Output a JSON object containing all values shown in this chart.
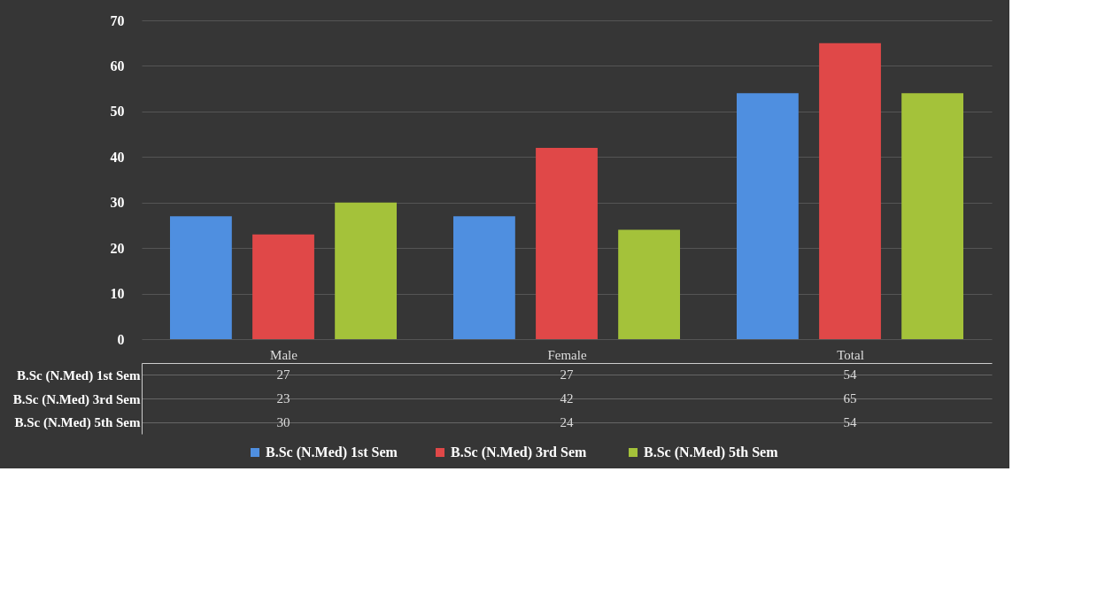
{
  "chart_data": {
    "type": "bar",
    "categories": [
      "Male",
      "Female",
      "Total"
    ],
    "series": [
      {
        "name": "B.Sc (N.Med) 1st Sem",
        "color": "#4f8fe0",
        "values": [
          27,
          27,
          54
        ]
      },
      {
        "name": "B.Sc (N.Med) 3rd  Sem",
        "color": "#e04848",
        "values": [
          23,
          42,
          65
        ]
      },
      {
        "name": "B.Sc (N.Med) 5th Sem",
        "color": "#a4c23a",
        "values": [
          30,
          24,
          54
        ]
      }
    ],
    "ylim": [
      0,
      70
    ],
    "yticks": [
      0,
      10,
      20,
      30,
      40,
      50,
      60,
      70
    ],
    "grid": "y",
    "legend": "bottom",
    "data_labels": true
  }
}
